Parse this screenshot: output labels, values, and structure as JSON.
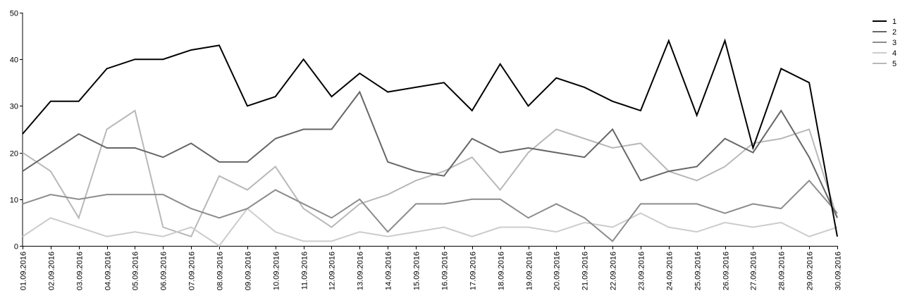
{
  "chart_data": {
    "type": "line",
    "title": "",
    "xlabel": "",
    "ylabel": "",
    "ylim": [
      0,
      50
    ],
    "yticks": [
      "0",
      "10",
      "20",
      "30",
      "40",
      "50"
    ],
    "grid": false,
    "legend_position": "top-right",
    "categories": [
      "01.09.2016",
      "02.09.2016",
      "03.09.2016",
      "04.09.2016",
      "05.09.2016",
      "06.09.2016",
      "07.09.2016",
      "08.09.2016",
      "09.09.2016",
      "10.09.2016",
      "11.09.2016",
      "12.09.2016",
      "13.09.2016",
      "14.09.2016",
      "15.09.2016",
      "16.09.2016",
      "17.09.2016",
      "18.09.2016",
      "19.09.2016",
      "20.09.2016",
      "21.09.2016",
      "22.09.2016",
      "23.09.2016",
      "24.09.2016",
      "25.09.2016",
      "26.09.2016",
      "27.09.2016",
      "28.09.2016",
      "29.09.2016",
      "30.09.2016"
    ],
    "series": [
      {
        "name": "1",
        "color": "#000000",
        "values": [
          24,
          31,
          31,
          38,
          40,
          40,
          42,
          43,
          30,
          32,
          40,
          32,
          37,
          33,
          34,
          35,
          29,
          39,
          30,
          36,
          34,
          31,
          29,
          44,
          28,
          44,
          21,
          38,
          35,
          2
        ]
      },
      {
        "name": "2",
        "color": "#666666",
        "values": [
          16,
          20,
          24,
          21,
          21,
          19,
          22,
          18,
          18,
          23,
          25,
          25,
          33,
          18,
          16,
          15,
          23,
          20,
          21,
          20,
          19,
          25,
          14,
          16,
          17,
          23,
          20,
          29,
          19,
          6
        ]
      },
      {
        "name": "3",
        "color": "#8c8c8c",
        "values": [
          9,
          11,
          10,
          11,
          11,
          11,
          8,
          6,
          8,
          12,
          9,
          6,
          10,
          3,
          9,
          9,
          10,
          10,
          6,
          9,
          6,
          1,
          9,
          9,
          9,
          7,
          9,
          8,
          14,
          7
        ]
      },
      {
        "name": "4",
        "color": "#cccccc",
        "values": [
          2,
          6,
          4,
          2,
          3,
          2,
          4,
          0,
          8,
          3,
          1,
          1,
          3,
          2,
          3,
          4,
          2,
          4,
          4,
          3,
          5,
          4,
          7,
          4,
          3,
          5,
          4,
          5,
          2,
          4
        ]
      },
      {
        "name": "5",
        "color": "#b8b8b8",
        "values": [
          20,
          16,
          6,
          25,
          29,
          4,
          2,
          15,
          12,
          17,
          8,
          4,
          9,
          11,
          14,
          16,
          19,
          12,
          20,
          25,
          23,
          21,
          22,
          16,
          14,
          17,
          22,
          23,
          25,
          6
        ]
      }
    ]
  }
}
